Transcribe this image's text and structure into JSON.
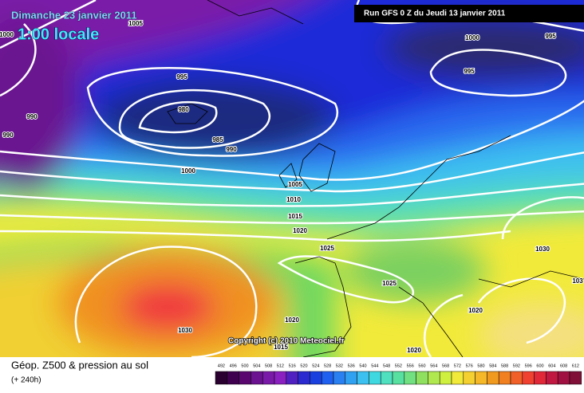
{
  "header": {
    "date": "Dimanche 23 janvier 2011",
    "time": "1:00 locale",
    "run": "Run GFS 0 Z du Jeudi 13 janvier 2011"
  },
  "isobars": [
    "1005",
    "1000",
    "995",
    "980",
    "985",
    "990",
    "990",
    "990",
    "1000",
    "1005",
    "1010",
    "1015",
    "1020",
    "1025",
    "1025",
    "1030",
    "1020",
    "1015",
    "1020",
    "1020",
    "1030",
    "103",
    "1000",
    "995",
    "995"
  ],
  "copyright": "Copyright (c) 2010 Meteociel.fr",
  "footer": {
    "title": "Géop. Z500 & pression au sol",
    "range": "(+ 240h)"
  },
  "scale": {
    "labels": [
      "492",
      "496",
      "500",
      "504",
      "508",
      "512",
      "516",
      "520",
      "524",
      "528",
      "532",
      "536",
      "540",
      "544",
      "548",
      "552",
      "556",
      "560",
      "564",
      "568",
      "572",
      "576",
      "580",
      "584",
      "588",
      "592",
      "596",
      "600",
      "604",
      "608",
      "612"
    ]
  }
}
